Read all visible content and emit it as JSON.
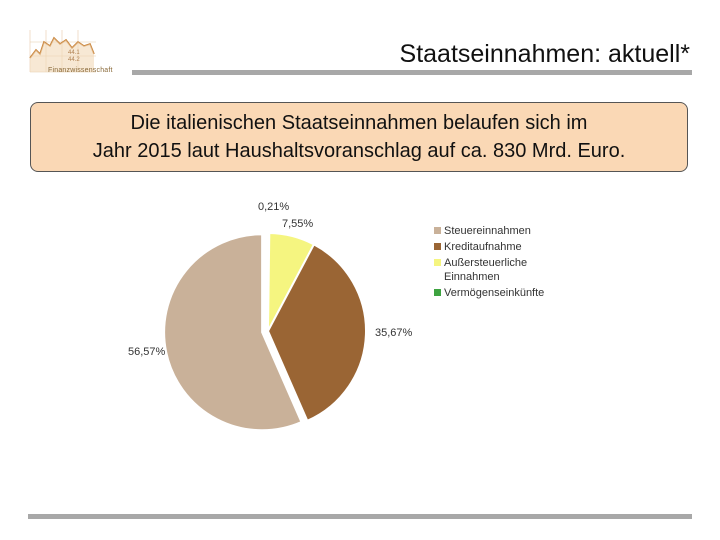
{
  "header": {
    "title": "Staatseinnahmen: aktuell*",
    "logo_text": "Finanzwissenschaft",
    "logo_digits_1": "44.1",
    "logo_digits_2": "44.2"
  },
  "callout": {
    "line1": "Die italienischen Staatseinnahmen belaufen sich im",
    "line2": "Jahr 2015 laut Haushaltsvoranschlag auf ca. 830 Mrd. Euro."
  },
  "colors": {
    "accent_bar": "#a8a8a8",
    "callout_bg": "#fad8b5"
  },
  "chart_data": {
    "type": "pie",
    "title": "",
    "series": [
      {
        "name": "Steuereinnahmen",
        "value": 56.57,
        "label": "56,57%",
        "color": "#c9b199"
      },
      {
        "name": "Kreditaufnahme",
        "value": 35.67,
        "label": "35,67%",
        "color": "#9a6534"
      },
      {
        "name": "Außersteuerliche Einnahmen",
        "value": 7.55,
        "label": "7,55%",
        "color": "#f5f580"
      },
      {
        "name": "Vermögenseinkünfte",
        "value": 0.21,
        "label": "0,21%",
        "color": "#3ea340"
      }
    ],
    "legend_position": "right",
    "legend_lines": [
      [
        "Steuereinnahmen"
      ],
      [
        "Kreditaufnahme"
      ],
      [
        "Außersteuerliche",
        "Einnahmen"
      ],
      [
        "Vermögenseinkünfte"
      ]
    ]
  }
}
